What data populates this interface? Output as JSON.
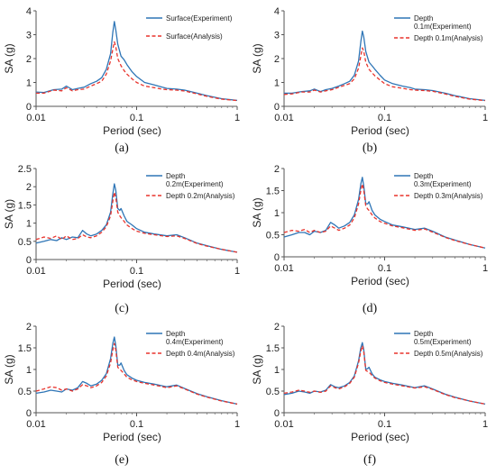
{
  "styles": {
    "experiment_color": "#2e75b6",
    "analysis_color": "#e8332c"
  },
  "chart_data": [
    {
      "type": "line",
      "caption": "(a)",
      "xlabel": "Period (sec)",
      "ylabel": "SA (g)",
      "xscale": "log",
      "xlim": [
        0.01,
        1
      ],
      "ylim": [
        0,
        4
      ],
      "xticks": [
        "0.01",
        "0.1",
        "1"
      ],
      "yticks": [
        "0",
        "1",
        "2",
        "3",
        "4"
      ],
      "legend": [
        [
          "Surface(Experiment)"
        ],
        [
          "Surface(Analysis)"
        ]
      ],
      "series": [
        {
          "name": "Surface(Experiment)",
          "x": [
            0.01,
            0.012,
            0.015,
            0.018,
            0.02,
            0.023,
            0.026,
            0.03,
            0.035,
            0.04,
            0.045,
            0.05,
            0.055,
            0.058,
            0.06,
            0.062,
            0.065,
            0.07,
            0.075,
            0.08,
            0.09,
            0.1,
            0.12,
            0.15,
            0.18,
            0.2,
            0.25,
            0.3,
            0.4,
            0.5,
            0.7,
            1.0
          ],
          "y": [
            0.6,
            0.58,
            0.7,
            0.72,
            0.85,
            0.7,
            0.75,
            0.8,
            0.95,
            1.05,
            1.2,
            1.55,
            2.2,
            3.1,
            3.55,
            3.2,
            2.6,
            2.1,
            1.95,
            1.75,
            1.45,
            1.25,
            1.0,
            0.9,
            0.8,
            0.75,
            0.72,
            0.68,
            0.55,
            0.45,
            0.32,
            0.25
          ]
        },
        {
          "name": "Surface(Analysis)",
          "x": [
            0.01,
            0.012,
            0.015,
            0.018,
            0.02,
            0.023,
            0.026,
            0.03,
            0.035,
            0.04,
            0.045,
            0.05,
            0.055,
            0.058,
            0.06,
            0.062,
            0.065,
            0.07,
            0.075,
            0.08,
            0.09,
            0.1,
            0.12,
            0.15,
            0.18,
            0.2,
            0.25,
            0.3,
            0.4,
            0.5,
            0.7,
            1.0
          ],
          "y": [
            0.55,
            0.55,
            0.68,
            0.65,
            0.78,
            0.65,
            0.7,
            0.72,
            0.85,
            0.95,
            1.05,
            1.35,
            1.9,
            2.4,
            2.7,
            2.5,
            2.0,
            1.7,
            1.5,
            1.35,
            1.15,
            1.0,
            0.85,
            0.78,
            0.72,
            0.7,
            0.68,
            0.64,
            0.52,
            0.42,
            0.3,
            0.24
          ]
        }
      ]
    },
    {
      "type": "line",
      "caption": "(b)",
      "xlabel": "Period (sec)",
      "ylabel": "SA (g)",
      "xscale": "log",
      "xlim": [
        0.01,
        1
      ],
      "ylim": [
        0,
        4
      ],
      "xticks": [
        "0.01",
        "0.1",
        "1"
      ],
      "yticks": [
        "0",
        "1",
        "2",
        "3",
        "4"
      ],
      "legend": [
        [
          "Depth",
          "0.1m(Experiment)"
        ],
        [
          "Depth 0.1m(Analysis)"
        ]
      ],
      "series": [
        {
          "name": "Depth 0.1m(Experiment)",
          "x": [
            0.01,
            0.012,
            0.015,
            0.018,
            0.02,
            0.023,
            0.026,
            0.03,
            0.035,
            0.04,
            0.045,
            0.05,
            0.055,
            0.058,
            0.06,
            0.062,
            0.065,
            0.07,
            0.075,
            0.08,
            0.09,
            0.1,
            0.12,
            0.15,
            0.18,
            0.2,
            0.25,
            0.3,
            0.4,
            0.5,
            0.7,
            1.0
          ],
          "y": [
            0.55,
            0.55,
            0.62,
            0.65,
            0.72,
            0.62,
            0.7,
            0.75,
            0.85,
            0.95,
            1.05,
            1.3,
            1.9,
            2.7,
            3.15,
            2.9,
            2.3,
            1.85,
            1.7,
            1.55,
            1.3,
            1.1,
            0.95,
            0.85,
            0.78,
            0.72,
            0.7,
            0.66,
            0.55,
            0.45,
            0.32,
            0.25
          ]
        },
        {
          "name": "Depth 0.1m(Analysis)",
          "x": [
            0.01,
            0.012,
            0.015,
            0.018,
            0.02,
            0.023,
            0.026,
            0.03,
            0.035,
            0.04,
            0.045,
            0.05,
            0.055,
            0.058,
            0.06,
            0.062,
            0.065,
            0.07,
            0.075,
            0.08,
            0.09,
            0.1,
            0.12,
            0.15,
            0.18,
            0.2,
            0.25,
            0.3,
            0.4,
            0.5,
            0.7,
            1.0
          ],
          "y": [
            0.5,
            0.52,
            0.6,
            0.6,
            0.68,
            0.6,
            0.65,
            0.7,
            0.8,
            0.88,
            0.95,
            1.15,
            1.6,
            2.1,
            2.45,
            2.3,
            1.85,
            1.55,
            1.4,
            1.28,
            1.1,
            0.95,
            0.82,
            0.76,
            0.7,
            0.68,
            0.66,
            0.63,
            0.52,
            0.42,
            0.3,
            0.24
          ]
        }
      ]
    },
    {
      "type": "line",
      "caption": "(c)",
      "xlabel": "Period (sec)",
      "ylabel": "SA (g)",
      "xscale": "log",
      "xlim": [
        0.01,
        1
      ],
      "ylim": [
        0,
        2.5
      ],
      "xticks": [
        "0.01",
        "0.1",
        "1"
      ],
      "yticks": [
        "0",
        "0.5",
        "1",
        "1.5",
        "2",
        "2.5"
      ],
      "legend": [
        [
          "Depth",
          "0.2m(Experiment)"
        ],
        [
          "Depth 0.2m(Analysis)"
        ]
      ],
      "series": [
        {
          "name": "Depth 0.2m(Experiment)",
          "x": [
            0.01,
            0.012,
            0.014,
            0.016,
            0.018,
            0.02,
            0.023,
            0.026,
            0.029,
            0.032,
            0.035,
            0.04,
            0.045,
            0.05,
            0.055,
            0.058,
            0.06,
            0.062,
            0.065,
            0.068,
            0.07,
            0.075,
            0.08,
            0.09,
            0.1,
            0.12,
            0.15,
            0.2,
            0.25,
            0.3,
            0.4,
            0.5,
            0.7,
            1.0
          ],
          "y": [
            0.45,
            0.5,
            0.55,
            0.52,
            0.6,
            0.55,
            0.62,
            0.6,
            0.8,
            0.7,
            0.65,
            0.7,
            0.8,
            0.95,
            1.3,
            1.8,
            2.08,
            1.9,
            1.4,
            1.35,
            1.4,
            1.2,
            1.05,
            0.95,
            0.85,
            0.75,
            0.7,
            0.65,
            0.68,
            0.6,
            0.45,
            0.38,
            0.28,
            0.2
          ]
        },
        {
          "name": "Depth 0.2m(Analysis)",
          "x": [
            0.01,
            0.012,
            0.014,
            0.016,
            0.018,
            0.02,
            0.023,
            0.026,
            0.029,
            0.032,
            0.035,
            0.04,
            0.045,
            0.05,
            0.055,
            0.058,
            0.06,
            0.062,
            0.065,
            0.068,
            0.07,
            0.075,
            0.08,
            0.09,
            0.1,
            0.12,
            0.15,
            0.2,
            0.25,
            0.3,
            0.4,
            0.5,
            0.7,
            1.0
          ],
          "y": [
            0.55,
            0.62,
            0.58,
            0.65,
            0.55,
            0.65,
            0.55,
            0.58,
            0.68,
            0.62,
            0.6,
            0.65,
            0.75,
            0.9,
            1.2,
            1.6,
            1.85,
            1.7,
            1.3,
            1.2,
            1.15,
            1.05,
            0.95,
            0.85,
            0.78,
            0.72,
            0.68,
            0.63,
            0.65,
            0.58,
            0.44,
            0.37,
            0.28,
            0.2
          ]
        }
      ]
    },
    {
      "type": "line",
      "caption": "(d)",
      "xlabel": "Period (sec)",
      "ylabel": "SA (g)",
      "xscale": "log",
      "xlim": [
        0.01,
        1
      ],
      "ylim": [
        0,
        2
      ],
      "xticks": [
        "0.01",
        "0.1",
        "1"
      ],
      "yticks": [
        "0",
        "0.5",
        "1",
        "1.5",
        "2"
      ],
      "legend": [
        [
          "Depth",
          "0.3m(Experiment)"
        ],
        [
          "Depth 0.3m(Analysis)"
        ]
      ],
      "series": [
        {
          "name": "Depth 0.3m(Experiment)",
          "x": [
            0.01,
            0.012,
            0.014,
            0.016,
            0.018,
            0.02,
            0.023,
            0.026,
            0.029,
            0.032,
            0.035,
            0.04,
            0.045,
            0.05,
            0.055,
            0.058,
            0.06,
            0.062,
            0.065,
            0.068,
            0.07,
            0.075,
            0.08,
            0.09,
            0.1,
            0.12,
            0.15,
            0.2,
            0.25,
            0.3,
            0.4,
            0.5,
            0.7,
            1.0
          ],
          "y": [
            0.45,
            0.5,
            0.55,
            0.55,
            0.5,
            0.58,
            0.55,
            0.6,
            0.78,
            0.72,
            0.65,
            0.7,
            0.78,
            0.95,
            1.3,
            1.65,
            1.8,
            1.6,
            1.2,
            1.2,
            1.25,
            1.05,
            0.95,
            0.85,
            0.8,
            0.72,
            0.68,
            0.62,
            0.65,
            0.58,
            0.45,
            0.38,
            0.28,
            0.2
          ]
        },
        {
          "name": "Depth 0.3m(Analysis)",
          "x": [
            0.01,
            0.012,
            0.014,
            0.016,
            0.018,
            0.02,
            0.023,
            0.026,
            0.029,
            0.032,
            0.035,
            0.04,
            0.045,
            0.05,
            0.055,
            0.058,
            0.06,
            0.062,
            0.065,
            0.068,
            0.07,
            0.075,
            0.08,
            0.09,
            0.1,
            0.12,
            0.15,
            0.2,
            0.25,
            0.3,
            0.4,
            0.5,
            0.7,
            1.0
          ],
          "y": [
            0.55,
            0.6,
            0.58,
            0.62,
            0.55,
            0.6,
            0.55,
            0.58,
            0.7,
            0.65,
            0.6,
            0.65,
            0.72,
            0.88,
            1.2,
            1.5,
            1.65,
            1.5,
            1.15,
            1.08,
            1.05,
            0.95,
            0.88,
            0.8,
            0.76,
            0.7,
            0.66,
            0.6,
            0.63,
            0.56,
            0.44,
            0.37,
            0.28,
            0.2
          ]
        }
      ]
    },
    {
      "type": "line",
      "caption": "(e)",
      "xlabel": "Period (sec)",
      "ylabel": "SA (g)",
      "xscale": "log",
      "xlim": [
        0.01,
        1
      ],
      "ylim": [
        0,
        2
      ],
      "xticks": [
        "0.01",
        "0.1",
        "1"
      ],
      "yticks": [
        "0",
        "0.5",
        "1",
        "1.5",
        "2"
      ],
      "legend": [
        [
          "Depth",
          "0.4m(Experiment)"
        ],
        [
          "Depth 0.4m(Analysis)"
        ]
      ],
      "series": [
        {
          "name": "Depth 0.4m(Experiment)",
          "x": [
            0.01,
            0.012,
            0.014,
            0.016,
            0.018,
            0.02,
            0.023,
            0.026,
            0.029,
            0.032,
            0.035,
            0.04,
            0.045,
            0.05,
            0.055,
            0.058,
            0.06,
            0.062,
            0.065,
            0.068,
            0.07,
            0.075,
            0.08,
            0.09,
            0.1,
            0.12,
            0.15,
            0.2,
            0.25,
            0.3,
            0.4,
            0.5,
            0.7,
            1.0
          ],
          "y": [
            0.45,
            0.48,
            0.52,
            0.5,
            0.48,
            0.55,
            0.52,
            0.58,
            0.72,
            0.68,
            0.62,
            0.66,
            0.75,
            0.9,
            1.25,
            1.6,
            1.75,
            1.55,
            1.1,
            1.1,
            1.15,
            0.98,
            0.88,
            0.8,
            0.75,
            0.7,
            0.66,
            0.6,
            0.64,
            0.56,
            0.44,
            0.37,
            0.28,
            0.2
          ]
        },
        {
          "name": "Depth 0.4m(Analysis)",
          "x": [
            0.01,
            0.012,
            0.014,
            0.016,
            0.018,
            0.02,
            0.023,
            0.026,
            0.029,
            0.032,
            0.035,
            0.04,
            0.045,
            0.05,
            0.055,
            0.058,
            0.06,
            0.062,
            0.065,
            0.068,
            0.07,
            0.075,
            0.08,
            0.09,
            0.1,
            0.12,
            0.15,
            0.2,
            0.25,
            0.3,
            0.4,
            0.5,
            0.7,
            1.0
          ],
          "y": [
            0.5,
            0.55,
            0.6,
            0.58,
            0.52,
            0.55,
            0.5,
            0.55,
            0.65,
            0.62,
            0.58,
            0.62,
            0.7,
            0.85,
            1.15,
            1.45,
            1.6,
            1.45,
            1.05,
            1.0,
            0.98,
            0.9,
            0.82,
            0.76,
            0.72,
            0.68,
            0.64,
            0.58,
            0.62,
            0.55,
            0.43,
            0.36,
            0.27,
            0.2
          ]
        }
      ]
    },
    {
      "type": "line",
      "caption": "(f)",
      "xlabel": "Period (sec)",
      "ylabel": "SA (g)",
      "xscale": "log",
      "xlim": [
        0.01,
        1
      ],
      "ylim": [
        0,
        2
      ],
      "xticks": [
        "0.01",
        "0.1",
        "1"
      ],
      "yticks": [
        "0",
        "0.5",
        "1",
        "1.5",
        "2"
      ],
      "legend": [
        [
          "Depth",
          "0.5m(Experiment)"
        ],
        [
          "Depth 0.5m(Analysis)"
        ]
      ],
      "series": [
        {
          "name": "Depth 0.5m(Experiment)",
          "x": [
            0.01,
            0.012,
            0.014,
            0.016,
            0.018,
            0.02,
            0.023,
            0.026,
            0.029,
            0.032,
            0.035,
            0.04,
            0.045,
            0.05,
            0.055,
            0.058,
            0.06,
            0.062,
            0.065,
            0.068,
            0.07,
            0.075,
            0.08,
            0.09,
            0.1,
            0.12,
            0.15,
            0.2,
            0.25,
            0.3,
            0.4,
            0.5,
            0.7,
            1.0
          ],
          "y": [
            0.42,
            0.45,
            0.5,
            0.48,
            0.45,
            0.5,
            0.48,
            0.52,
            0.65,
            0.6,
            0.58,
            0.62,
            0.7,
            0.85,
            1.2,
            1.5,
            1.62,
            1.45,
            1.0,
            1.02,
            1.05,
            0.9,
            0.82,
            0.76,
            0.72,
            0.68,
            0.64,
            0.58,
            0.62,
            0.55,
            0.43,
            0.36,
            0.27,
            0.2
          ]
        },
        {
          "name": "Depth 0.5m(Analysis)",
          "x": [
            0.01,
            0.012,
            0.014,
            0.016,
            0.018,
            0.02,
            0.023,
            0.026,
            0.029,
            0.032,
            0.035,
            0.04,
            0.045,
            0.05,
            0.055,
            0.058,
            0.06,
            0.062,
            0.065,
            0.068,
            0.07,
            0.075,
            0.08,
            0.09,
            0.1,
            0.12,
            0.15,
            0.2,
            0.25,
            0.3,
            0.4,
            0.5,
            0.7,
            1.0
          ],
          "y": [
            0.45,
            0.48,
            0.52,
            0.5,
            0.47,
            0.5,
            0.47,
            0.5,
            0.62,
            0.58,
            0.55,
            0.6,
            0.68,
            0.82,
            1.15,
            1.42,
            1.55,
            1.4,
            0.98,
            0.95,
            0.94,
            0.86,
            0.8,
            0.74,
            0.7,
            0.66,
            0.62,
            0.57,
            0.6,
            0.54,
            0.42,
            0.35,
            0.27,
            0.2
          ]
        }
      ]
    }
  ]
}
